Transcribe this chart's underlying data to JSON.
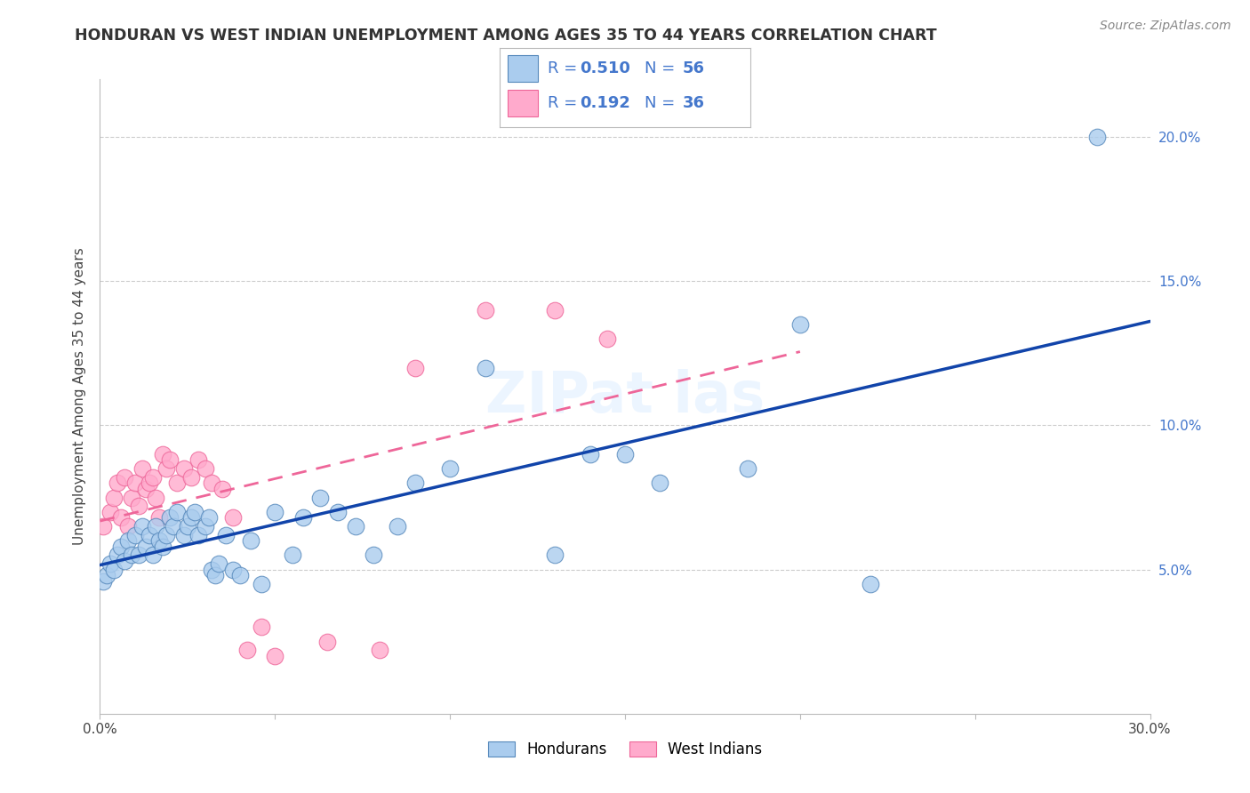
{
  "title": "HONDURAN VS WEST INDIAN UNEMPLOYMENT AMONG AGES 35 TO 44 YEARS CORRELATION CHART",
  "source": "Source: ZipAtlas.com",
  "ylabel": "Unemployment Among Ages 35 to 44 years",
  "xlim": [
    0.0,
    0.3
  ],
  "ylim": [
    0.0,
    0.22
  ],
  "honduran_R": 0.51,
  "honduran_N": 56,
  "west_indian_R": 0.192,
  "west_indian_N": 36,
  "blue_scatter": "#AACCEE",
  "pink_scatter": "#FFAACC",
  "blue_edge": "#5588BB",
  "pink_edge": "#EE6699",
  "blue_line": "#1144AA",
  "pink_line": "#EE6699",
  "legend_text_color": "#4477CC",
  "grid_color": "#CCCCCC",
  "bg_color": "#FFFFFF",
  "honduran_x": [
    0.001,
    0.002,
    0.003,
    0.004,
    0.005,
    0.006,
    0.007,
    0.008,
    0.009,
    0.01,
    0.011,
    0.012,
    0.013,
    0.014,
    0.015,
    0.016,
    0.017,
    0.018,
    0.019,
    0.02,
    0.021,
    0.022,
    0.024,
    0.025,
    0.026,
    0.027,
    0.028,
    0.03,
    0.031,
    0.032,
    0.033,
    0.034,
    0.036,
    0.038,
    0.04,
    0.043,
    0.046,
    0.05,
    0.055,
    0.058,
    0.063,
    0.068,
    0.073,
    0.078,
    0.085,
    0.09,
    0.1,
    0.11,
    0.13,
    0.14,
    0.15,
    0.16,
    0.185,
    0.2,
    0.22,
    0.285
  ],
  "honduran_y": [
    0.046,
    0.048,
    0.052,
    0.05,
    0.055,
    0.058,
    0.053,
    0.06,
    0.055,
    0.062,
    0.055,
    0.065,
    0.058,
    0.062,
    0.055,
    0.065,
    0.06,
    0.058,
    0.062,
    0.068,
    0.065,
    0.07,
    0.062,
    0.065,
    0.068,
    0.07,
    0.062,
    0.065,
    0.068,
    0.05,
    0.048,
    0.052,
    0.062,
    0.05,
    0.048,
    0.06,
    0.045,
    0.07,
    0.055,
    0.068,
    0.075,
    0.07,
    0.065,
    0.055,
    0.065,
    0.08,
    0.085,
    0.12,
    0.055,
    0.09,
    0.09,
    0.08,
    0.085,
    0.135,
    0.045,
    0.2
  ],
  "west_indian_x": [
    0.001,
    0.003,
    0.004,
    0.005,
    0.006,
    0.007,
    0.008,
    0.009,
    0.01,
    0.011,
    0.012,
    0.013,
    0.014,
    0.015,
    0.016,
    0.017,
    0.018,
    0.019,
    0.02,
    0.022,
    0.024,
    0.026,
    0.028,
    0.03,
    0.032,
    0.035,
    0.038,
    0.042,
    0.046,
    0.05,
    0.065,
    0.08,
    0.09,
    0.11,
    0.13,
    0.145
  ],
  "west_indian_y": [
    0.065,
    0.07,
    0.075,
    0.08,
    0.068,
    0.082,
    0.065,
    0.075,
    0.08,
    0.072,
    0.085,
    0.078,
    0.08,
    0.082,
    0.075,
    0.068,
    0.09,
    0.085,
    0.088,
    0.08,
    0.085,
    0.082,
    0.088,
    0.085,
    0.08,
    0.078,
    0.068,
    0.022,
    0.03,
    0.02,
    0.025,
    0.022,
    0.12,
    0.14,
    0.14,
    0.13
  ]
}
